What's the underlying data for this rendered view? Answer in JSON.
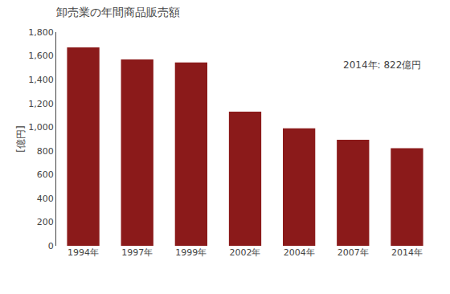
{
  "chart_data": {
    "type": "bar",
    "title": "卸売業の年間商品販売額",
    "ylabel": "[億円]",
    "annotation": "2014年: 822億円",
    "categories": [
      "1994年",
      "1997年",
      "1999年",
      "2002年",
      "2004年",
      "2007年",
      "2014年"
    ],
    "values": [
      1672,
      1570,
      1545,
      1130,
      990,
      893,
      822
    ],
    "color": "#8B1A1A",
    "ylim": [
      0,
      1800
    ],
    "yticks": [
      0,
      200,
      400,
      600,
      800,
      {
        "value": 1000,
        "label": "1,000"
      },
      {
        "value": 1200,
        "label": "1,200"
      },
      {
        "value": 1400,
        "label": "1,400"
      },
      {
        "value": 1600,
        "label": "1,600"
      },
      {
        "value": 1800,
        "label": "1,800"
      }
    ],
    "grid": false
  }
}
